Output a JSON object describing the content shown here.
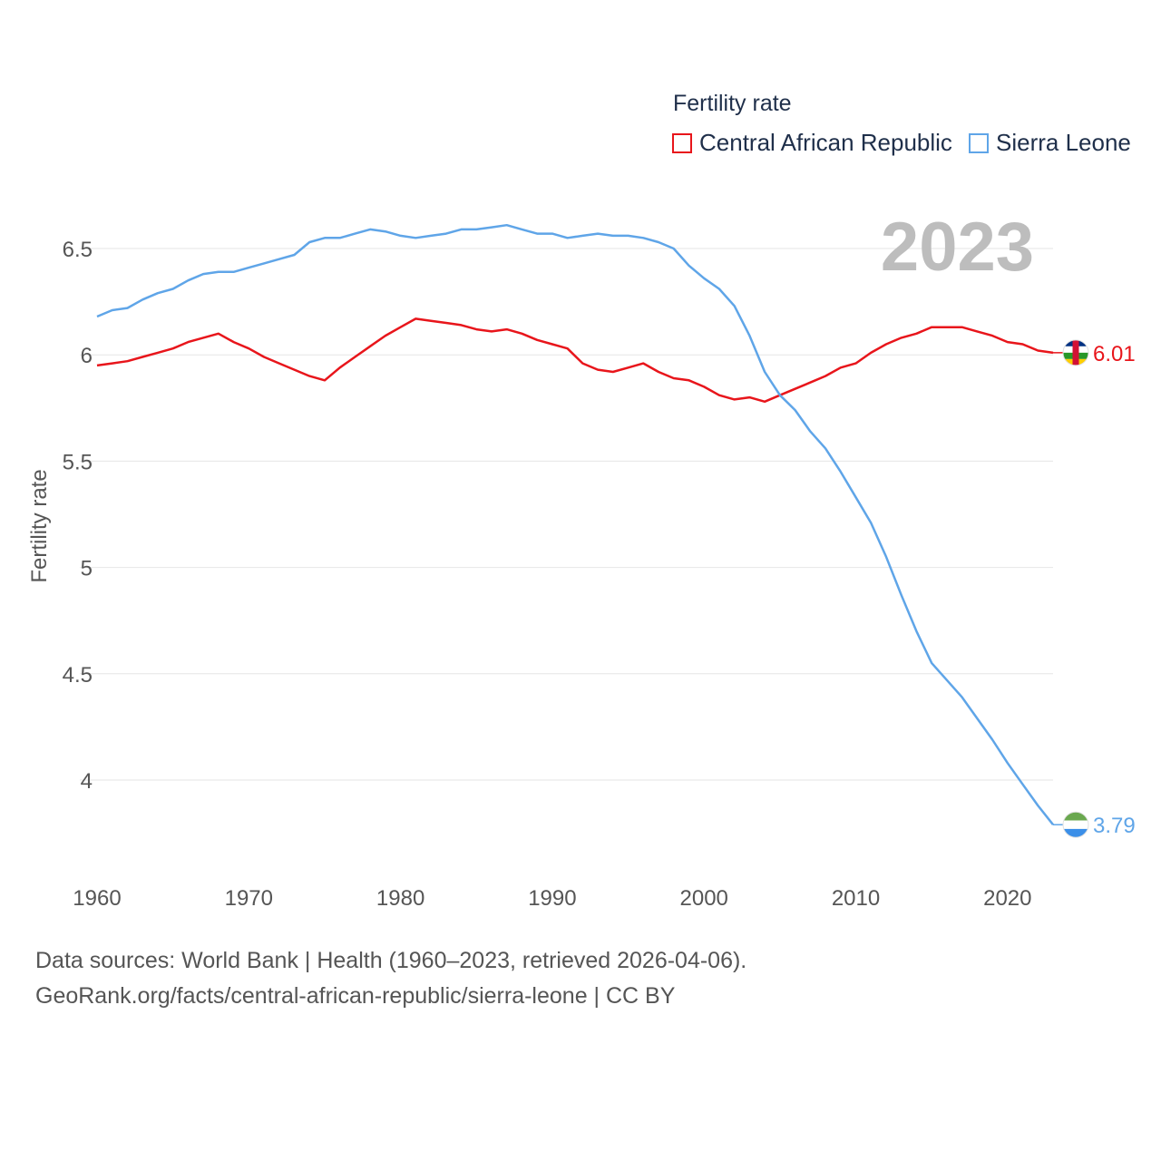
{
  "chart_data": {
    "type": "line",
    "title": "Fertility rate",
    "ylabel": "Fertility rate",
    "xlabel": "",
    "year_label": "2023",
    "xlim": [
      1960,
      2023
    ],
    "ylim": [
      3.6,
      6.75
    ],
    "x_ticks": [
      1960,
      1970,
      1980,
      1990,
      2000,
      2010,
      2020
    ],
    "y_ticks": [
      {
        "value": 4,
        "label": "4"
      },
      {
        "value": 4.5,
        "label": "4.5"
      },
      {
        "value": 5,
        "label": "5"
      },
      {
        "value": 5.5,
        "label": "5.5"
      },
      {
        "value": 6,
        "label": "6"
      },
      {
        "value": 6.5,
        "label": "6.5"
      }
    ],
    "grid": true,
    "legend_position": "top-right",
    "series": [
      {
        "name": "Central African Republic",
        "color": "#e8151b",
        "end_label": "6.01",
        "flag_icon": "central-african-republic-flag-icon",
        "x_start": 1960,
        "values": [
          5.95,
          5.96,
          5.97,
          5.99,
          6.01,
          6.03,
          6.06,
          6.08,
          6.1,
          6.06,
          6.03,
          5.99,
          5.96,
          5.93,
          5.9,
          5.88,
          5.94,
          5.99,
          6.04,
          6.09,
          6.13,
          6.17,
          6.16,
          6.15,
          6.14,
          6.12,
          6.11,
          6.12,
          6.1,
          6.07,
          6.05,
          6.03,
          5.96,
          5.93,
          5.92,
          5.94,
          5.96,
          5.92,
          5.89,
          5.88,
          5.85,
          5.81,
          5.79,
          5.8,
          5.78,
          5.81,
          5.84,
          5.87,
          5.9,
          5.94,
          5.96,
          6.01,
          6.05,
          6.08,
          6.1,
          6.13,
          6.13,
          6.13,
          6.11,
          6.09,
          6.06,
          6.05,
          6.02,
          6.01
        ]
      },
      {
        "name": "Sierra Leone",
        "color": "#5fa5e8",
        "end_label": "3.79",
        "flag_icon": "sierra-leone-flag-icon",
        "x_start": 1960,
        "values": [
          6.18,
          6.21,
          6.22,
          6.26,
          6.29,
          6.31,
          6.35,
          6.38,
          6.39,
          6.39,
          6.41,
          6.43,
          6.45,
          6.47,
          6.53,
          6.55,
          6.55,
          6.57,
          6.59,
          6.58,
          6.56,
          6.55,
          6.56,
          6.57,
          6.59,
          6.59,
          6.6,
          6.61,
          6.59,
          6.57,
          6.57,
          6.55,
          6.56,
          6.57,
          6.56,
          6.56,
          6.55,
          6.53,
          6.5,
          6.42,
          6.36,
          6.31,
          6.23,
          6.09,
          5.92,
          5.81,
          5.74,
          5.64,
          5.56,
          5.45,
          5.33,
          5.21,
          5.05,
          4.87,
          4.7,
          4.55,
          4.47,
          4.39,
          4.29,
          4.19,
          4.08,
          3.98,
          3.88,
          3.79
        ]
      }
    ]
  },
  "source": {
    "line1": "Data sources: World Bank | Health (1960–2023, retrieved 2026-04-06).",
    "line2": "GeoRank.org/facts/central-african-republic/sierra-leone | CC BY"
  }
}
